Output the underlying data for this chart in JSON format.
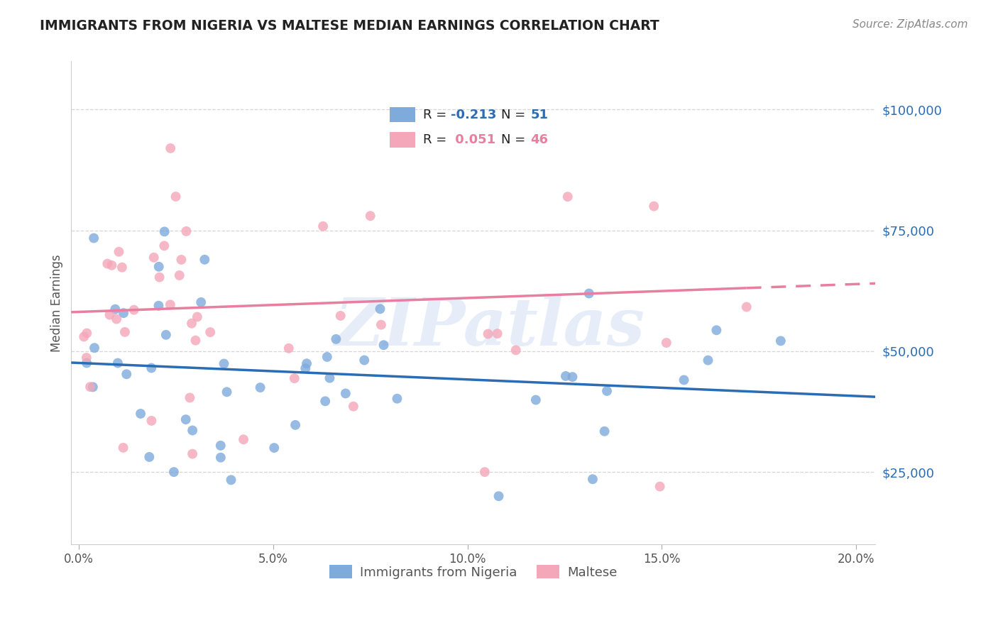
{
  "title": "IMMIGRANTS FROM NIGERIA VS MALTESE MEDIAN EARNINGS CORRELATION CHART",
  "source_text": "Source: ZipAtlas.com",
  "ylabel": "Median Earnings",
  "xlabel_ticks": [
    "0.0%",
    "5.0%",
    "10.0%",
    "15.0%",
    "20.0%"
  ],
  "xlabel_tick_vals": [
    0.0,
    0.05,
    0.1,
    0.15,
    0.2
  ],
  "ytick_labels": [
    "$25,000",
    "$50,000",
    "$75,000",
    "$100,000"
  ],
  "ytick_vals": [
    25000,
    50000,
    75000,
    100000
  ],
  "ylim": [
    10000,
    110000
  ],
  "xlim": [
    -0.002,
    0.205
  ],
  "nigeria_R": -0.213,
  "nigeria_N": 51,
  "maltese_R": 0.051,
  "maltese_N": 46,
  "nigeria_color": "#7faadc",
  "maltese_color": "#f4a7b9",
  "nigeria_line_color": "#2a6db5",
  "maltese_line_color": "#e87fa0",
  "legend_label_nigeria": "Immigrants from Nigeria",
  "legend_label_maltese": "Maltese",
  "watermark": "ZIPatlas",
  "background_color": "#ffffff",
  "grid_color": "#cccccc",
  "title_color": "#1a1a2e",
  "axis_label_color": "#2a6db5",
  "nigeria_seed": 7,
  "maltese_seed": 13
}
